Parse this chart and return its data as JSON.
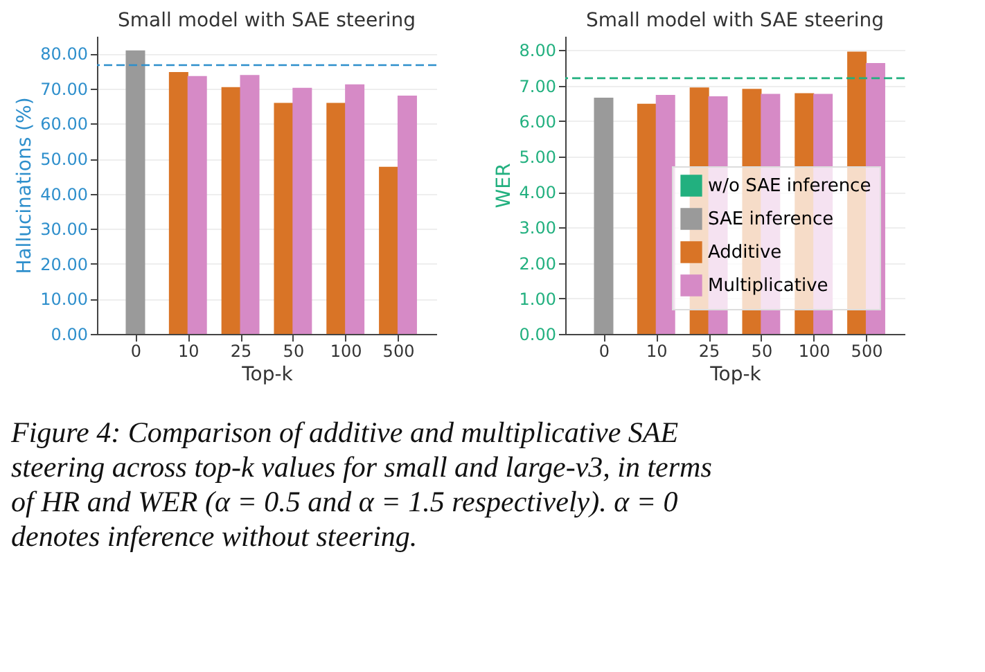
{
  "chart_data": [
    {
      "type": "bar",
      "title": "Small model with SAE steering",
      "xlabel": "Top-k",
      "ylabel": "Hallucinations (%)",
      "categories": [
        "0",
        "10",
        "25",
        "50",
        "100",
        "500"
      ],
      "series": [
        {
          "color": "#9a9a9a",
          "values": [
            80.9,
            null,
            null,
            null,
            null,
            null
          ]
        },
        {
          "color": "#d97426",
          "values": [
            null,
            74.7,
            70.4,
            65.9,
            65.9,
            47.7
          ]
        },
        {
          "color": "#d68ac6",
          "values": [
            null,
            73.6,
            73.9,
            70.2,
            71.2,
            68.0
          ]
        }
      ],
      "ylim": [
        0,
        85
      ],
      "yticks": [
        {
          "value": 0,
          "label": "0.00"
        },
        {
          "value": 10,
          "label": "10.00"
        },
        {
          "value": 20,
          "label": "20.00"
        },
        {
          "value": 30,
          "label": "30.00"
        },
        {
          "value": 40,
          "label": "40.00"
        },
        {
          "value": 50,
          "label": "50.00"
        },
        {
          "value": 60,
          "label": "60.00"
        },
        {
          "value": 70,
          "label": "70.00"
        },
        {
          "value": 80,
          "label": "80.00"
        }
      ],
      "ref_lines": [
        {
          "axis": "y",
          "value": 76.7,
          "color": "#2e8fcc",
          "line_style": "dashed"
        }
      ],
      "grid": "y",
      "legend": false,
      "annotations": [
        "Figure 4: Comparison of additive and multiplicative SAE steering across top-k values for small and large-v3, in terms of HR and WER (α = 0.5 and α = 1.5 respectively). α = 0 denotes inference without steering."
      ]
    },
    {
      "type": "bar",
      "title": "Small model with SAE steering",
      "xlabel": "Top-k",
      "ylabel": "WER",
      "categories": [
        "0",
        "10",
        "25",
        "50",
        "100",
        "500"
      ],
      "series": [
        {
          "name": "SAE inference",
          "color": "#9a9a9a",
          "values": [
            6.66,
            null,
            null,
            null,
            null,
            null
          ]
        },
        {
          "name": "Additive",
          "color": "#d97426",
          "values": [
            null,
            6.49,
            6.95,
            6.91,
            6.79,
            7.96
          ]
        },
        {
          "name": "Multiplicative",
          "color": "#d68ac6",
          "values": [
            null,
            6.74,
            6.7,
            6.77,
            6.77,
            7.64
          ]
        }
      ],
      "ylim": [
        0,
        8.4
      ],
      "yticks": [
        {
          "value": 0,
          "label": "0.00"
        },
        {
          "value": 1,
          "label": "1.00"
        },
        {
          "value": 2,
          "label": "2.00"
        },
        {
          "value": 3,
          "label": "3.00"
        },
        {
          "value": 4,
          "label": "4.00"
        },
        {
          "value": 5,
          "label": "5.00"
        },
        {
          "value": 6,
          "label": "6.00"
        },
        {
          "value": 7,
          "label": "7.00"
        },
        {
          "value": 8,
          "label": "8.00"
        }
      ],
      "ref_lines": [
        {
          "axis": "y",
          "value": 7.21,
          "label": "w/o SAE inference",
          "color": "#22b07f",
          "line_style": "dashed"
        }
      ],
      "grid": "y",
      "legend": "bottom right"
    }
  ]
}
